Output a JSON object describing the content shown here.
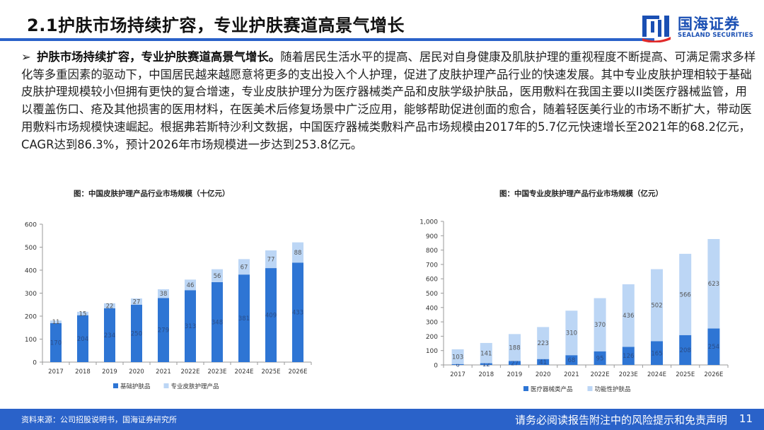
{
  "header": {
    "title": "2.1护肤市场持续扩容，专业护肤赛道高景气增长"
  },
  "logo": {
    "cn": "国海证券",
    "en": "SEALAND SECURITIES"
  },
  "body": {
    "lead": "护肤市场持续扩容，专业护肤赛道高景气增长。",
    "text": "随着居民生活水平的提高、居民对自身健康及肌肤护理的重视程度不断提高、可满足需求多样化等多重因素的驱动下，中国居民越来越愿意将更多的支出投入个人护理，促进了皮肤护理产品行业的快速发展。其中专业皮肤护理相较于基础皮肤护理规模较小但拥有更快的复合增速，专业皮肤护理分为医疗器械类产品和皮肤学级护肤品，医用敷料在我国主要以II类医疗器械监管，用以覆盖伤口、疮及其他损害的医用材料，在医美术后修复场景中广泛应用，能够帮助促进创面的愈合，随着轻医美行业的市场不断扩大，带动医用敷料市场规模快速崛起。根据弗若斯特沙利文数据，中国医疗器械类敷料产品市场规模由2017年的5.7亿元快速增长至2021年的68.2亿元，CAGR达到86.3%，预计2026年市场规模进一步达到253.8亿元。"
  },
  "colors": {
    "brand": "#2a62c9",
    "series_dark": "#2e75d4",
    "series_light": "#bcd6f5"
  },
  "chart_data": [
    {
      "type": "bar",
      "stacked": true,
      "title": "图：中国皮肤护理产品行业市场规模（十亿元）",
      "categories": [
        "2017",
        "2018",
        "2019",
        "2020",
        "2021",
        "2022E",
        "2023E",
        "2024E",
        "2025E",
        "2026E"
      ],
      "series": [
        {
          "name": "基础护肤品",
          "values": [
            170,
            204,
            234,
            250,
            279,
            313,
            348,
            381,
            409,
            433
          ]
        },
        {
          "name": "专业皮肤护理产品",
          "values": [
            11,
            15,
            22,
            27,
            38,
            46,
            56,
            67,
            77,
            88
          ]
        }
      ],
      "ylim": [
        0,
        600
      ],
      "yticks": [
        0,
        100,
        200,
        300,
        400,
        500,
        600
      ],
      "legend": "bottom"
    },
    {
      "type": "bar",
      "stacked": true,
      "title": "图：中国专业皮肤护理产品行业市场规模（亿元）",
      "categories": [
        "2017",
        "2018",
        "2019",
        "2020",
        "2021",
        "2022E",
        "2023E",
        "2024E",
        "2025E",
        "2026E"
      ],
      "series": [
        {
          "name": "医疗器械类产品",
          "values": [
            6,
            12,
            27,
            41,
            68,
            95,
            126,
            165,
            208,
            254
          ]
        },
        {
          "name": "功能性护肤品",
          "values": [
            103,
            141,
            188,
            223,
            310,
            370,
            436,
            502,
            566,
            623
          ]
        }
      ],
      "ylim": [
        0,
        1000
      ],
      "yticks": [
        0,
        100,
        200,
        300,
        400,
        500,
        600,
        700,
        800,
        900,
        1000
      ],
      "ytick_labels": [
        "0",
        "100",
        "200",
        "300",
        "400",
        "500",
        "600",
        "700",
        "800",
        "900",
        "1,000"
      ],
      "legend": "bottom"
    }
  ],
  "footer": {
    "source": "资料来源：公司招股说明书，国海证券研究所",
    "disclaimer": "请务必阅读报告附注中的风险提示和免责声明",
    "page": "11"
  }
}
